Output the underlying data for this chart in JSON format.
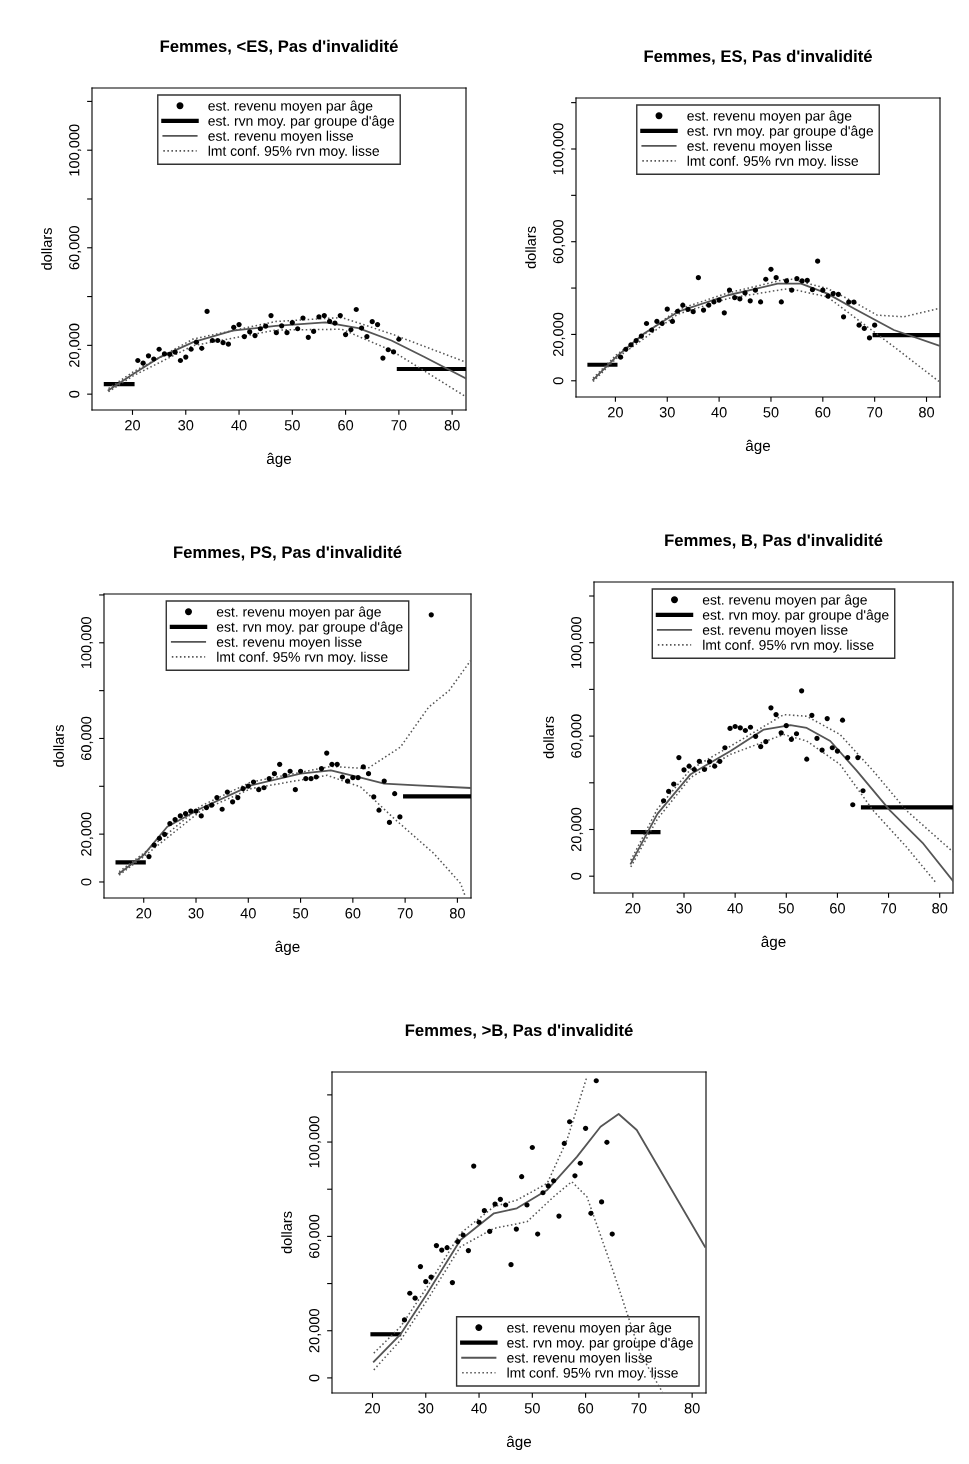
{
  "chart_data": [
    {
      "type": "line",
      "title": "Femmes, <ES, Pas d'invalidité",
      "xlabel": "âge",
      "ylabel": "dollars",
      "legend": "top",
      "xlim": [
        12.4,
        82.6
      ],
      "xticks": [
        20,
        30,
        40,
        50,
        60,
        70,
        80
      ],
      "ylim": [
        -6500,
        125500
      ],
      "yticks": [
        {
          "value": 0,
          "label": "0"
        },
        {
          "value": 20000,
          "label": "20,000"
        },
        {
          "value": 40000,
          "label": null
        },
        {
          "value": 60000,
          "label": "60,000"
        },
        {
          "value": 80000,
          "label": null
        },
        {
          "value": 100000,
          "label": "100,000"
        },
        {
          "value": 120000,
          "label": null
        }
      ],
      "series": [
        {
          "name": "est. revenu moyen par âge",
          "type": "scatter",
          "marker": "circle",
          "color": "#000000",
          "x": [
            21,
            22,
            23,
            24,
            25,
            26,
            27,
            28,
            29,
            30,
            31,
            32,
            33,
            34,
            35,
            36,
            37,
            38,
            39,
            40,
            41,
            42,
            43,
            44,
            45,
            46,
            47,
            48,
            49,
            50,
            51,
            52,
            53,
            54,
            55,
            56,
            57,
            58,
            59,
            60,
            61,
            62,
            63,
            64,
            65,
            66,
            67,
            68,
            69,
            70
          ],
          "values": [
            13800,
            12700,
            15700,
            14400,
            18400,
            16500,
            16300,
            17200,
            13800,
            15200,
            18400,
            21300,
            18800,
            33900,
            22000,
            22000,
            21100,
            20500,
            27400,
            28500,
            23600,
            25500,
            24000,
            26800,
            27900,
            32200,
            25200,
            28000,
            25200,
            29300,
            26800,
            31200,
            23300,
            25700,
            31700,
            32200,
            29800,
            29100,
            32200,
            24400,
            26400,
            34700,
            27100,
            23600,
            29700,
            28500,
            14800,
            18200,
            17300,
            22500
          ]
        },
        {
          "name": "est. rvn moy. par groupe d'âge",
          "color": "#000000",
          "x": [
            15,
            20,
            45,
            70,
            82.6
          ],
          "values": [
            4100,
            4100,
            null,
            10300,
            10300
          ]
        },
        {
          "name": "est. revenu moyen lisse",
          "color": "#555555",
          "x": [
            15.5,
            20.2,
            25.2,
            31.4,
            38.8,
            46.9,
            56.2,
            62.4,
            68.6,
            74.8,
            82.6
          ],
          "values": [
            1600,
            8400,
            15200,
            21300,
            26000,
            28000,
            29400,
            27100,
            22000,
            15200,
            6400
          ]
        },
        {
          "name": "lmt conf. 95% rvn moy. lisse",
          "line_style": "dotted",
          "color": "#555555",
          "x": [
            15.5,
            20.2,
            31.4,
            46.9,
            59.3,
            68.6,
            82.6
          ],
          "values": [
            2300,
            9200,
            22600,
            29800,
            31400,
            24700,
            13100
          ]
        },
        {
          "line_style": "dotted",
          "color": "#555555",
          "x": [
            15.5,
            20.2,
            31.4,
            46.9,
            59.3,
            68.6,
            82.6
          ],
          "values": [
            1000,
            7600,
            19900,
            26300,
            26600,
            17900,
            -1100
          ]
        }
      ]
    },
    {
      "type": "line",
      "title": "Femmes, ES, Pas d'invalidité",
      "xlabel": "âge",
      "ylabel": "dollars",
      "legend": "top",
      "xlim": [
        12.4,
        82.6
      ],
      "xticks": [
        20,
        30,
        40,
        50,
        60,
        70,
        80
      ],
      "ylim": [
        -7000,
        122000
      ],
      "yticks": [
        {
          "value": 0,
          "label": "0"
        },
        {
          "value": 20000,
          "label": "20,000"
        },
        {
          "value": 40000,
          "label": null
        },
        {
          "value": 60000,
          "label": "60,000"
        },
        {
          "value": 80000,
          "label": null
        },
        {
          "value": 100000,
          "label": "100,000"
        },
        {
          "value": 120000,
          "label": null
        }
      ],
      "series": [
        {
          "name": "est. revenu moyen par âge",
          "type": "scatter",
          "marker": "circle",
          "color": "#000000",
          "x": [
            21,
            22,
            23,
            24,
            25,
            26,
            27,
            28,
            29,
            30,
            31,
            32,
            33,
            34,
            35,
            36,
            37,
            38,
            39,
            40,
            41,
            42,
            43,
            44,
            45,
            46,
            47,
            48,
            49,
            50,
            51,
            52,
            53,
            54,
            55,
            56,
            57,
            58,
            59,
            60,
            61,
            62,
            63,
            64,
            65,
            66,
            67,
            68,
            69,
            70
          ],
          "values": [
            10200,
            13600,
            15500,
            17300,
            19300,
            24700,
            21900,
            25600,
            24700,
            30900,
            25600,
            30000,
            32600,
            30800,
            29800,
            44500,
            30500,
            32600,
            34000,
            34800,
            29300,
            39100,
            35900,
            35300,
            37900,
            34500,
            39100,
            34000,
            43800,
            48100,
            44500,
            34000,
            43100,
            39100,
            44100,
            43100,
            43300,
            39300,
            51600,
            39100,
            36500,
            37600,
            37300,
            27600,
            33900,
            33900,
            24000,
            22600,
            18500,
            24000
          ]
        },
        {
          "name": "est. rvn moy. par groupe d'âge",
          "color": "#000000",
          "x": [
            15,
            20,
            45,
            70,
            82.6
          ],
          "values": [
            6900,
            6900,
            null,
            19700,
            19700
          ]
        },
        {
          "name": "est. revenu moyen lisse",
          "color": "#555555",
          "x": [
            15.7,
            20.2,
            25.6,
            32.1,
            41.7,
            51.3,
            55.8,
            60.9,
            66.0,
            73.7,
            82.4
          ],
          "values": [
            400,
            10400,
            20500,
            29800,
            36900,
            41900,
            41900,
            37600,
            31200,
            21900,
            15200
          ]
        },
        {
          "name": "lmt conf. 95% rvn moy. lisse",
          "line_style": "dotted",
          "color": "#555555",
          "x": [
            15.7,
            20.2,
            32.1,
            41.7,
            53.4,
            60.9,
            66.0,
            70.5,
            75.6,
            82.4
          ],
          "values": [
            1100,
            11200,
            30800,
            37900,
            44100,
            39800,
            34000,
            28300,
            27600,
            31200
          ]
        },
        {
          "line_style": "dotted",
          "color": "#555555",
          "x": [
            15.7,
            20.2,
            32.1,
            41.7,
            53.4,
            60.9,
            66.0,
            73.7,
            82.4
          ],
          "values": [
            -300,
            9700,
            28800,
            35500,
            39800,
            36200,
            27600,
            14700,
            -300
          ]
        }
      ]
    },
    {
      "type": "line",
      "title": "Femmes, PS, Pas d'invalidité",
      "xlabel": "âge",
      "ylabel": "dollars",
      "legend": "top",
      "xlim": [
        12.4,
        82.6
      ],
      "xticks": [
        20,
        30,
        40,
        50,
        60,
        70,
        80
      ],
      "ylim": [
        -6700,
        120400
      ],
      "yticks": [
        {
          "value": 0,
          "label": "0"
        },
        {
          "value": 20000,
          "label": "20,000"
        },
        {
          "value": 40000,
          "label": null
        },
        {
          "value": 60000,
          "label": "60,000"
        },
        {
          "value": 80000,
          "label": null
        },
        {
          "value": 100000,
          "label": "100,000"
        },
        {
          "value": 120000,
          "label": null
        }
      ],
      "series": [
        {
          "name": "est. revenu moyen par âge",
          "type": "scatter",
          "marker": "circle",
          "color": "#000000",
          "x": [
            21,
            22,
            23,
            24,
            25,
            26,
            27,
            28,
            29,
            30,
            31,
            32,
            33,
            34,
            35,
            36,
            37,
            38,
            39,
            40,
            41,
            42,
            43,
            44,
            45,
            46,
            47,
            48,
            49,
            50,
            51,
            52,
            53,
            54,
            55,
            56,
            57,
            58,
            59,
            60,
            61,
            62,
            63,
            64,
            65,
            66,
            67,
            68,
            69,
            75
          ],
          "values": [
            10600,
            15400,
            18200,
            19900,
            24400,
            26100,
            27600,
            28600,
            29600,
            29600,
            27600,
            31100,
            32100,
            35300,
            30400,
            37600,
            33500,
            35300,
            39000,
            40100,
            41800,
            38600,
            39400,
            43200,
            45300,
            49200,
            44600,
            46300,
            38600,
            46300,
            43200,
            43200,
            43900,
            47400,
            53900,
            49200,
            49200,
            43900,
            42200,
            43600,
            43600,
            48100,
            45300,
            35600,
            30000,
            42200,
            24900,
            36900,
            27200,
            111700
          ]
        },
        {
          "name": "est. rvn moy. par groupe d'âge",
          "color": "#000000",
          "x": [
            15,
            20,
            45,
            70,
            82.6
          ],
          "values": [
            8200,
            8200,
            null,
            35800,
            35800
          ]
        },
        {
          "name": "est. revenu moyen lisse",
          "color": "#555555",
          "x": [
            15.3,
            20,
            24.5,
            30.9,
            40.5,
            50,
            55.8,
            61.5,
            66,
            72.3,
            82.5
          ],
          "values": [
            3600,
            11300,
            23100,
            30700,
            40400,
            45300,
            46700,
            43600,
            41100,
            40400,
            39300
          ]
        },
        {
          "name": "lmt conf. 95% rvn moy. lisse",
          "line_style": "dotted",
          "color": "#555555",
          "x": [
            15.3,
            20,
            30.9,
            40.5,
            55.8,
            62.8,
            69.1,
            74.5,
            78.4,
            82.5
          ],
          "values": [
            4300,
            12000,
            31700,
            41800,
            48300,
            47400,
            56400,
            73100,
            80000,
            92500
          ]
        },
        {
          "line_style": "dotted",
          "color": "#555555",
          "x": [
            15.3,
            20,
            30.9,
            40.5,
            55.1,
            61.5,
            67.9,
            75.5,
            80.6,
            81.5
          ],
          "values": [
            2900,
            10600,
            29700,
            39000,
            44600,
            39700,
            26500,
            11900,
            -600,
            -6000
          ]
        }
      ]
    },
    {
      "type": "line",
      "title": "Femmes, B, Pas d'invalidité",
      "xlabel": "âge",
      "ylabel": "dollars",
      "legend": "top",
      "xlim": [
        12.4,
        82.6
      ],
      "xticks": [
        20,
        30,
        40,
        50,
        60,
        70,
        80
      ],
      "ylim": [
        -7200,
        126000
      ],
      "yticks": [
        {
          "value": 0,
          "label": "0"
        },
        {
          "value": 20000,
          "label": "20,000"
        },
        {
          "value": 40000,
          "label": null
        },
        {
          "value": 60000,
          "label": "60,000"
        },
        {
          "value": 80000,
          "label": null
        },
        {
          "value": 100000,
          "label": "100,000"
        },
        {
          "value": 120000,
          "label": null
        }
      ],
      "series": [
        {
          "name": "est. revenu moyen par âge",
          "type": "scatter",
          "marker": "circle",
          "color": "#000000",
          "x": [
            26,
            27,
            28,
            29,
            30,
            31,
            32,
            33,
            34,
            35,
            36,
            37,
            38,
            39,
            40,
            41,
            42,
            43,
            44,
            45,
            46,
            47,
            48,
            49,
            50,
            51,
            52,
            53,
            54,
            55,
            56,
            57,
            58,
            59,
            60,
            61,
            62,
            63,
            64,
            65
          ],
          "values": [
            32300,
            36300,
            39400,
            50800,
            45500,
            47100,
            45700,
            49200,
            45700,
            49100,
            47100,
            49200,
            55000,
            63300,
            64100,
            63500,
            62400,
            63800,
            59900,
            55500,
            57600,
            72100,
            69200,
            61400,
            64500,
            58600,
            61000,
            79400,
            50100,
            68900,
            59000,
            54000,
            67500,
            55000,
            53600,
            66800,
            50800,
            30600,
            50800,
            36600
          ]
        },
        {
          "name": "est. rvn moy. par groupe d'âge",
          "color": "#000000",
          "x": [
            20,
            25,
            45,
            65,
            82.6
          ],
          "values": [
            18900,
            18900,
            null,
            29500,
            29500
          ]
        },
        {
          "name": "est. revenu moyen lisse",
          "color": "#555555",
          "x": [
            19.6,
            24.8,
            31.3,
            39.1,
            45.6,
            50.8,
            54.0,
            58.6,
            63.8,
            70.3,
            76.8,
            82.6
          ],
          "values": [
            5400,
            26700,
            43700,
            53600,
            62800,
            64700,
            63500,
            57900,
            45100,
            28100,
            13900,
            -2000
          ]
        },
        {
          "name": "lmt conf. 95% rvn moy. lisse",
          "line_style": "dotted",
          "color": "#555555",
          "x": [
            19.6,
            24.8,
            31.3,
            39.1,
            49.5,
            54.0,
            60.5,
            67.0,
            73.5,
            82.6
          ],
          "values": [
            6800,
            28800,
            45800,
            55700,
            69200,
            68500,
            60700,
            45100,
            28100,
            10400
          ]
        },
        {
          "line_style": "dotted",
          "color": "#555555",
          "x": [
            19.6,
            24.8,
            31.3,
            39.1,
            49.5,
            54.0,
            60.5,
            67.0,
            73.5,
            79.4
          ],
          "values": [
            4000,
            24500,
            42300,
            52200,
            60700,
            57900,
            47900,
            28100,
            12500,
            -3100
          ]
        }
      ]
    },
    {
      "type": "line",
      "title": "Femmes, >B, Pas d'invalidité",
      "xlabel": "âge",
      "ylabel": "dollars",
      "legend": "bottom right",
      "xlim": [
        12.4,
        82.6
      ],
      "xticks": [
        20,
        30,
        40,
        50,
        60,
        70,
        80
      ],
      "ylim": [
        -6400,
        129700
      ],
      "yticks": [
        {
          "value": 0,
          "label": "0"
        },
        {
          "value": 20000,
          "label": "20,000"
        },
        {
          "value": 40000,
          "label": null
        },
        {
          "value": 60000,
          "label": "60,000"
        },
        {
          "value": 80000,
          "label": null
        },
        {
          "value": 100000,
          "label": "100,000"
        },
        {
          "value": 120000,
          "label": null
        }
      ],
      "series": [
        {
          "name": "est. revenu moyen par âge",
          "type": "scatter",
          "marker": "circle",
          "color": "#000000",
          "x": [
            26,
            27,
            28,
            29,
            30,
            31,
            32,
            33,
            34,
            35,
            36,
            37,
            38,
            39,
            40,
            41,
            42,
            43,
            44,
            45,
            46,
            47,
            48,
            49,
            50,
            51,
            52,
            53,
            54,
            55,
            56,
            57,
            58,
            59,
            60,
            61,
            62,
            63,
            64,
            65
          ],
          "values": [
            24600,
            35900,
            33800,
            47200,
            40800,
            42700,
            56100,
            54200,
            55200,
            40400,
            57800,
            60600,
            54000,
            89800,
            66000,
            70900,
            62100,
            73700,
            75700,
            73300,
            48000,
            63100,
            85300,
            73300,
            97700,
            61000,
            78500,
            81400,
            83600,
            68600,
            99400,
            108600,
            85700,
            91000,
            105800,
            69800,
            126000,
            74600,
            99900,
            61000
          ]
        },
        {
          "name": "est. rvn moy. par groupe d'âge",
          "color": "#000000",
          "x": [
            20,
            25
          ],
          "values": [
            18500,
            18500
          ]
        },
        {
          "name": "est. revenu moyen lisse",
          "color": "#555555",
          "x": [
            20.25,
            25.3,
            30.3,
            36.5,
            42.8,
            47.1,
            52.8,
            58.4,
            62.8,
            66.2,
            69.6,
            82.4
          ],
          "values": [
            6900,
            18600,
            35900,
            58500,
            69800,
            71900,
            79700,
            93800,
            106500,
            111900,
            105100,
            55600
          ]
        },
        {
          "name": "lmt conf. 95% rvn moy. lisse",
          "line_style": "dotted",
          "color": "#555555",
          "x": [
            20.25,
            25.3,
            30.3,
            36.5,
            42.8,
            47.1,
            52.8,
            56.5,
            60.25
          ],
          "values": [
            10500,
            21800,
            38700,
            61300,
            72600,
            75400,
            82500,
            100800,
            127700
          ]
        },
        {
          "line_style": "dotted",
          "color": "#555555",
          "x": [
            20.25,
            25.3,
            30.3,
            36.5,
            42.8,
            49.0,
            54.0,
            57.4,
            60.25,
            65.3,
            70.25,
            74.4
          ],
          "values": [
            3400,
            16100,
            33100,
            55600,
            63400,
            66200,
            76800,
            83200,
            76800,
            44400,
            10500,
            -6000
          ]
        }
      ]
    }
  ]
}
